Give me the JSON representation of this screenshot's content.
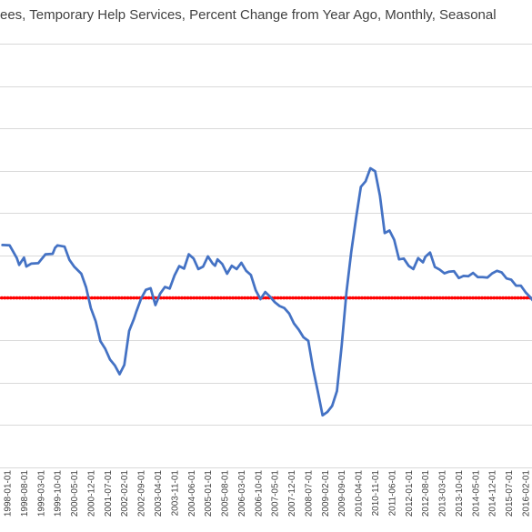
{
  "chart_data": {
    "type": "line",
    "title": "ees, Temporary Help Services, Percent Change from Year Ago, Monthly, Seasonal",
    "xlabel": "",
    "ylabel": "",
    "grid": "horizontal",
    "legend": "none",
    "x_tick_labels": [
      "1998-01-01",
      "1998-08-01",
      "1999-03-01",
      "1999-10-01",
      "2000-05-01",
      "2000-12-01",
      "2001-07-01",
      "2002-02-01",
      "2002-09-01",
      "2003-04-01",
      "2003-11-01",
      "2004-06-01",
      "2005-01-01",
      "2005-08-01",
      "2006-03-01",
      "2006-10-01",
      "2007-05-01",
      "2007-12-01",
      "2008-07-01",
      "2009-02-01",
      "2009-09-01",
      "2010-04-01",
      "2010-11-01",
      "2011-06-01",
      "2012-01-01",
      "2012-08-01",
      "2013-03-01",
      "2013-10-01",
      "2014-05-01",
      "2014-12-01",
      "2015-07-01",
      "2016-02-01"
    ],
    "y_range": [
      -40,
      60
    ],
    "y_gridlines": [
      -40,
      -30,
      -20,
      -10,
      0,
      10,
      20,
      30,
      40,
      50,
      60
    ],
    "reference_line": {
      "value": 0,
      "color": "#ff0000"
    },
    "series": [
      {
        "color": "#4472c4",
        "points": [
          [
            "1997-11",
            12.5
          ],
          [
            "1998-02",
            12.4
          ],
          [
            "1998-05",
            9.4
          ],
          [
            "1998-06",
            7.8
          ],
          [
            "1998-08",
            9.5
          ],
          [
            "1998-09",
            7.4
          ],
          [
            "1998-11",
            8.1
          ],
          [
            "1999-02",
            8.2
          ],
          [
            "1999-05",
            10.3
          ],
          [
            "1999-08",
            10.4
          ],
          [
            "1999-09",
            11.8
          ],
          [
            "1999-10",
            12.4
          ],
          [
            "2000-01",
            12.1
          ],
          [
            "2000-03",
            9.0
          ],
          [
            "2000-05",
            7.4
          ],
          [
            "2000-08",
            5.7
          ],
          [
            "2000-10",
            2.5
          ],
          [
            "2000-12",
            -2.4
          ],
          [
            "2001-02",
            -5.5
          ],
          [
            "2001-04",
            -10.2
          ],
          [
            "2001-06",
            -12.0
          ],
          [
            "2001-08",
            -14.5
          ],
          [
            "2001-10",
            -15.9
          ],
          [
            "2001-12",
            -18.0
          ],
          [
            "2002-02",
            -15.8
          ],
          [
            "2002-04",
            -7.8
          ],
          [
            "2002-06",
            -5.0
          ],
          [
            "2002-07",
            -3.3
          ],
          [
            "2002-09",
            -0.2
          ],
          [
            "2002-11",
            1.9
          ],
          [
            "2003-01",
            2.3
          ],
          [
            "2003-03",
            -1.7
          ],
          [
            "2003-05",
            1.0
          ],
          [
            "2003-07",
            2.6
          ],
          [
            "2003-09",
            2.2
          ],
          [
            "2003-11",
            5.3
          ],
          [
            "2004-01",
            7.5
          ],
          [
            "2004-03",
            6.9
          ],
          [
            "2004-05",
            10.3
          ],
          [
            "2004-07",
            9.3
          ],
          [
            "2004-09",
            6.8
          ],
          [
            "2004-11",
            7.4
          ],
          [
            "2005-01",
            9.8
          ],
          [
            "2005-03",
            8.1
          ],
          [
            "2005-04",
            7.6
          ],
          [
            "2005-05",
            9.1
          ],
          [
            "2005-07",
            8.0
          ],
          [
            "2005-09",
            5.7
          ],
          [
            "2005-11",
            7.6
          ],
          [
            "2006-01",
            6.8
          ],
          [
            "2006-03",
            8.3
          ],
          [
            "2006-05",
            6.4
          ],
          [
            "2006-07",
            5.4
          ],
          [
            "2006-09",
            1.8
          ],
          [
            "2006-11",
            -0.3
          ],
          [
            "2007-01",
            1.4
          ],
          [
            "2007-03",
            0.3
          ],
          [
            "2007-05",
            -1.0
          ],
          [
            "2007-07",
            -1.9
          ],
          [
            "2007-09",
            -2.4
          ],
          [
            "2007-11",
            -3.7
          ],
          [
            "2008-01",
            -6.0
          ],
          [
            "2008-03",
            -7.5
          ],
          [
            "2008-05",
            -9.3
          ],
          [
            "2008-07",
            -10.1
          ],
          [
            "2008-09",
            -16.6
          ],
          [
            "2008-11",
            -22.1
          ],
          [
            "2009-01",
            -27.7
          ],
          [
            "2009-03",
            -26.9
          ],
          [
            "2009-05",
            -25.5
          ],
          [
            "2009-07",
            -22.0
          ],
          [
            "2009-09",
            -11.3
          ],
          [
            "2009-11",
            1.4
          ],
          [
            "2010-01",
            10.8
          ],
          [
            "2010-03",
            18.8
          ],
          [
            "2010-05",
            26.2
          ],
          [
            "2010-07",
            27.5
          ],
          [
            "2010-09",
            30.6
          ],
          [
            "2010-11",
            29.9
          ],
          [
            "2011-01",
            24.1
          ],
          [
            "2011-03",
            15.3
          ],
          [
            "2011-05",
            15.9
          ],
          [
            "2011-07",
            13.7
          ],
          [
            "2011-09",
            9.1
          ],
          [
            "2011-11",
            9.3
          ],
          [
            "2012-01",
            7.6
          ],
          [
            "2012-03",
            6.8
          ],
          [
            "2012-05",
            9.4
          ],
          [
            "2012-07",
            8.4
          ],
          [
            "2012-08",
            9.7
          ],
          [
            "2012-10",
            10.7
          ],
          [
            "2012-12",
            7.3
          ],
          [
            "2013-02",
            6.7
          ],
          [
            "2013-04",
            5.8
          ],
          [
            "2013-06",
            6.2
          ],
          [
            "2013-08",
            6.3
          ],
          [
            "2013-10",
            4.7
          ],
          [
            "2013-12",
            5.2
          ],
          [
            "2014-02",
            5.1
          ],
          [
            "2014-04",
            5.9
          ],
          [
            "2014-06",
            4.9
          ],
          [
            "2014-08",
            4.9
          ],
          [
            "2014-10",
            4.8
          ],
          [
            "2014-12",
            5.8
          ],
          [
            "2015-02",
            6.4
          ],
          [
            "2015-04",
            6.0
          ],
          [
            "2015-06",
            4.6
          ],
          [
            "2015-08",
            4.3
          ],
          [
            "2015-10",
            2.9
          ],
          [
            "2015-12",
            2.9
          ],
          [
            "2016-02",
            1.3
          ],
          [
            "2016-04",
            0.1
          ],
          [
            "2016-06",
            -1.3
          ]
        ]
      }
    ]
  }
}
